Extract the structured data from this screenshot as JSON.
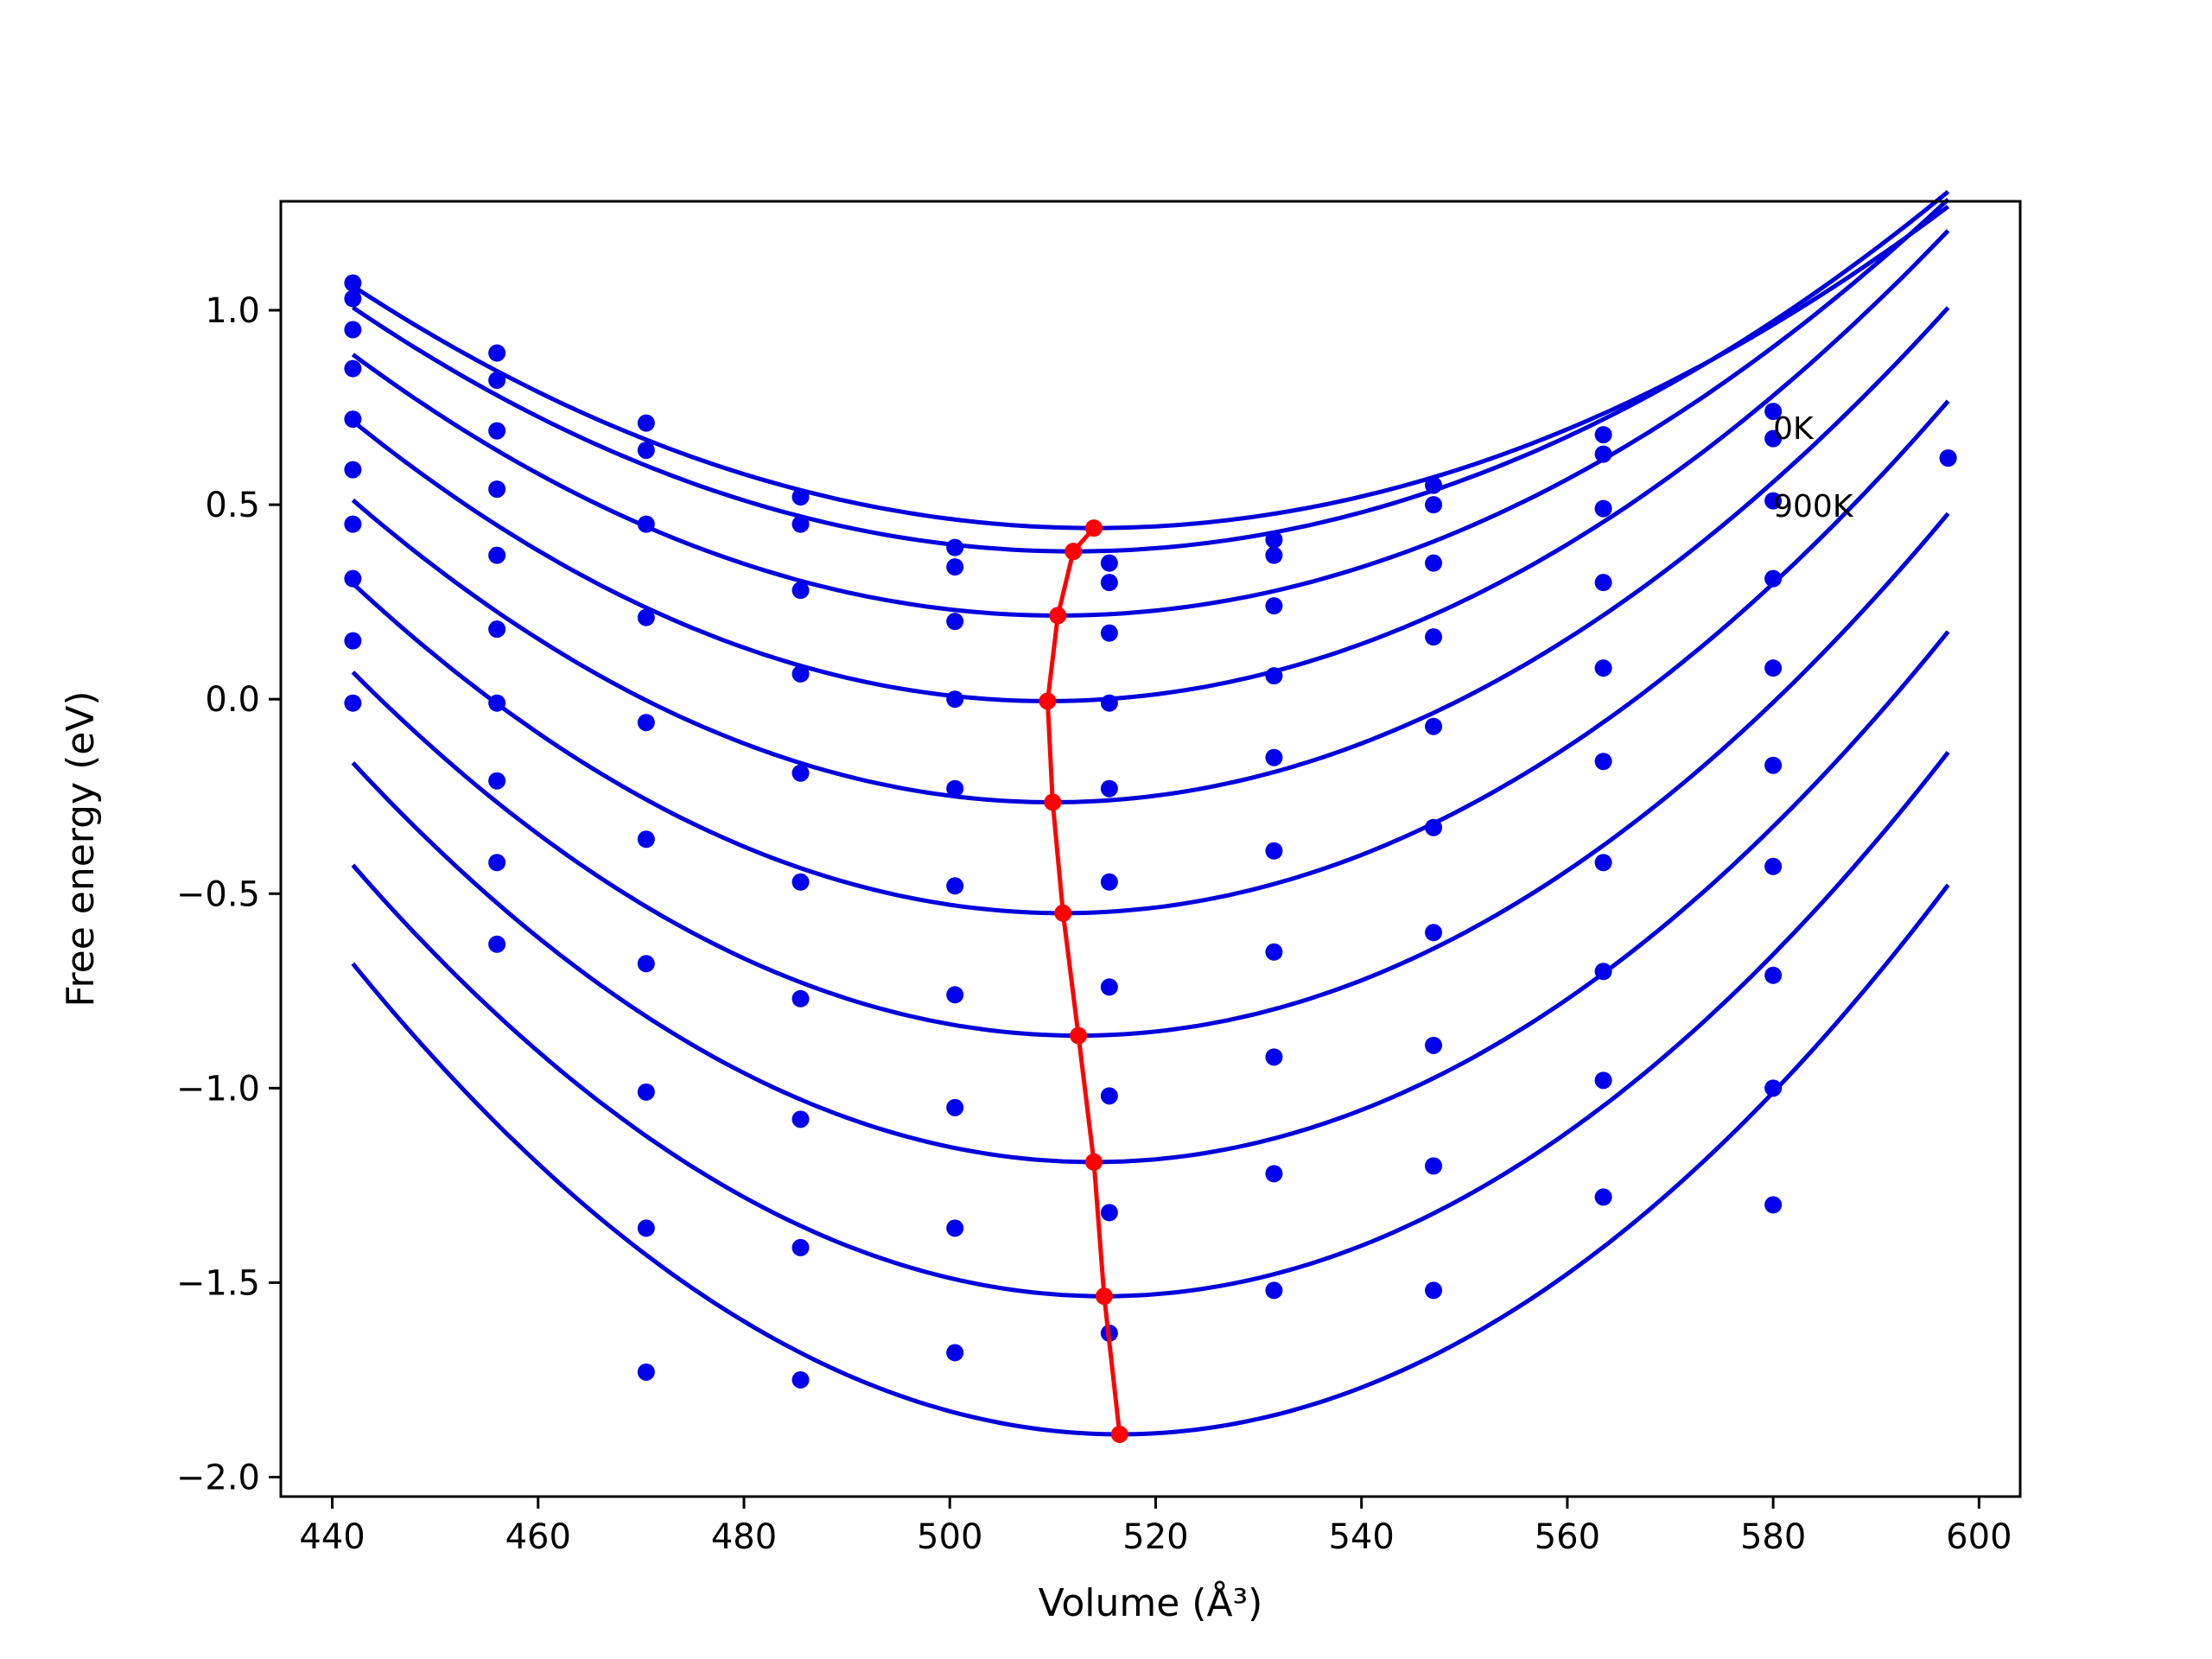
{
  "chart_data": {
    "type": "scatter",
    "title": "",
    "xlabel": "Volume (Å³)",
    "ylabel": "Free energy (eV)",
    "xlim": [
      435,
      604
    ],
    "ylim": [
      -2.05,
      1.28
    ],
    "xticks": [
      440,
      460,
      480,
      500,
      520,
      540,
      560,
      580,
      600
    ],
    "xtick_labels": [
      "440",
      "460",
      "480",
      "500",
      "520",
      "540",
      "560",
      "580",
      "600"
    ],
    "yticks": [
      -2.0,
      -1.5,
      -1.0,
      -0.5,
      0.0,
      0.5,
      1.0
    ],
    "ytick_labels": [
      "−2.0",
      "−1.5",
      "−1.0",
      "−0.5",
      "0.0",
      "0.5",
      "1.0"
    ],
    "grid": false,
    "annotations": [
      {
        "text": "0K",
        "x": 580,
        "y": 0.7
      },
      {
        "text": "900K",
        "x": 580,
        "y": 0.5
      }
    ],
    "colors": {
      "fit": "#0000dd",
      "points": "#0000ee",
      "minimum": "#ff0000"
    },
    "x_volumes": [
      442,
      456,
      470.5,
      485.5,
      500.5,
      515.5,
      531.5,
      547,
      563.5,
      580
    ],
    "fit_x_range": [
      442,
      597
    ],
    "series": [
      {
        "points": [
          1.07,
          0.89,
          0.71,
          0.52,
          0.39,
          0.35,
          0.41,
          0.55,
          0.68,
          0.74
        ],
        "fit": {
          "a": 0.00012,
          "v0": 514,
          "e0": 0.44
        }
      },
      {
        "points": [
          1.03,
          0.82,
          0.64,
          0.45,
          0.34,
          0.3,
          0.37,
          0.5,
          0.63,
          0.67
        ],
        "fit": {
          "a": 0.000128,
          "v0": 512,
          "e0": 0.38
        }
      },
      {
        "points": [
          0.95,
          0.69,
          0.45,
          0.28,
          0.2,
          0.17,
          0.24,
          0.35,
          0.49,
          0.51
        ],
        "fit": {
          "a": 0.000143,
          "v0": 510.5,
          "e0": 0.215
        }
      },
      {
        "points": [
          0.85,
          0.54,
          0.21,
          0.065,
          0.0,
          -0.01,
          0.06,
          0.16,
          0.3,
          0.31
        ],
        "fit": {
          "a": 0.000158,
          "v0": 509.5,
          "e0": -0.005
        }
      },
      {
        "points": [
          0.72,
          0.37,
          -0.06,
          -0.19,
          -0.23,
          -0.23,
          -0.15,
          -0.07,
          0.08,
          0.08
        ],
        "fit": {
          "a": 0.000168,
          "v0": 510,
          "e0": -0.265
        }
      },
      {
        "points": [
          0.59,
          0.18,
          -0.36,
          -0.47,
          -0.48,
          -0.47,
          -0.39,
          -0.33,
          -0.16,
          -0.17
        ],
        "fit": {
          "a": 0.000178,
          "v0": 511,
          "e0": -0.55
        }
      },
      {
        "points": [
          0.45,
          -0.01,
          -0.68,
          -0.77,
          -0.76,
          -0.74,
          -0.65,
          -0.6,
          -0.42,
          -0.43
        ],
        "fit": {
          "a": 0.000188,
          "v0": 512.5,
          "e0": -0.865
        }
      },
      {
        "points": [
          0.31,
          -0.21,
          -1.01,
          -1.08,
          -1.05,
          -1.02,
          -0.92,
          -0.89,
          -0.7,
          -0.71
        ],
        "fit": {
          "a": 0.000198,
          "v0": 514,
          "e0": -1.19
        }
      },
      {
        "points": [
          0.15,
          -0.42,
          -1.36,
          -1.41,
          -1.36,
          -1.32,
          -1.22,
          -1.2,
          -0.98,
          -1.0
        ],
        "fit": {
          "a": 0.000208,
          "v0": 515,
          "e0": -1.535
        }
      },
      {
        "points": [
          -0.01,
          -0.63,
          -1.73,
          -1.75,
          -1.68,
          -1.63,
          -1.52,
          -1.52,
          -1.28,
          -1.3
        ],
        "fit": {
          "a": 0.000218,
          "v0": 516.5,
          "e0": -1.89
        }
      }
    ],
    "extra_points": [
      {
        "x": 597,
        "y": 0.62
      },
      {
        "x": 597,
        "y": 0.62
      }
    ],
    "minimum_curve": {
      "x": [
        514,
        512,
        510.5,
        509.5,
        510,
        511,
        512.5,
        514,
        515,
        516.5
      ],
      "y": [
        0.44,
        0.38,
        0.215,
        -0.005,
        -0.265,
        -0.55,
        -0.865,
        -1.19,
        -1.535,
        -1.89
      ]
    }
  }
}
